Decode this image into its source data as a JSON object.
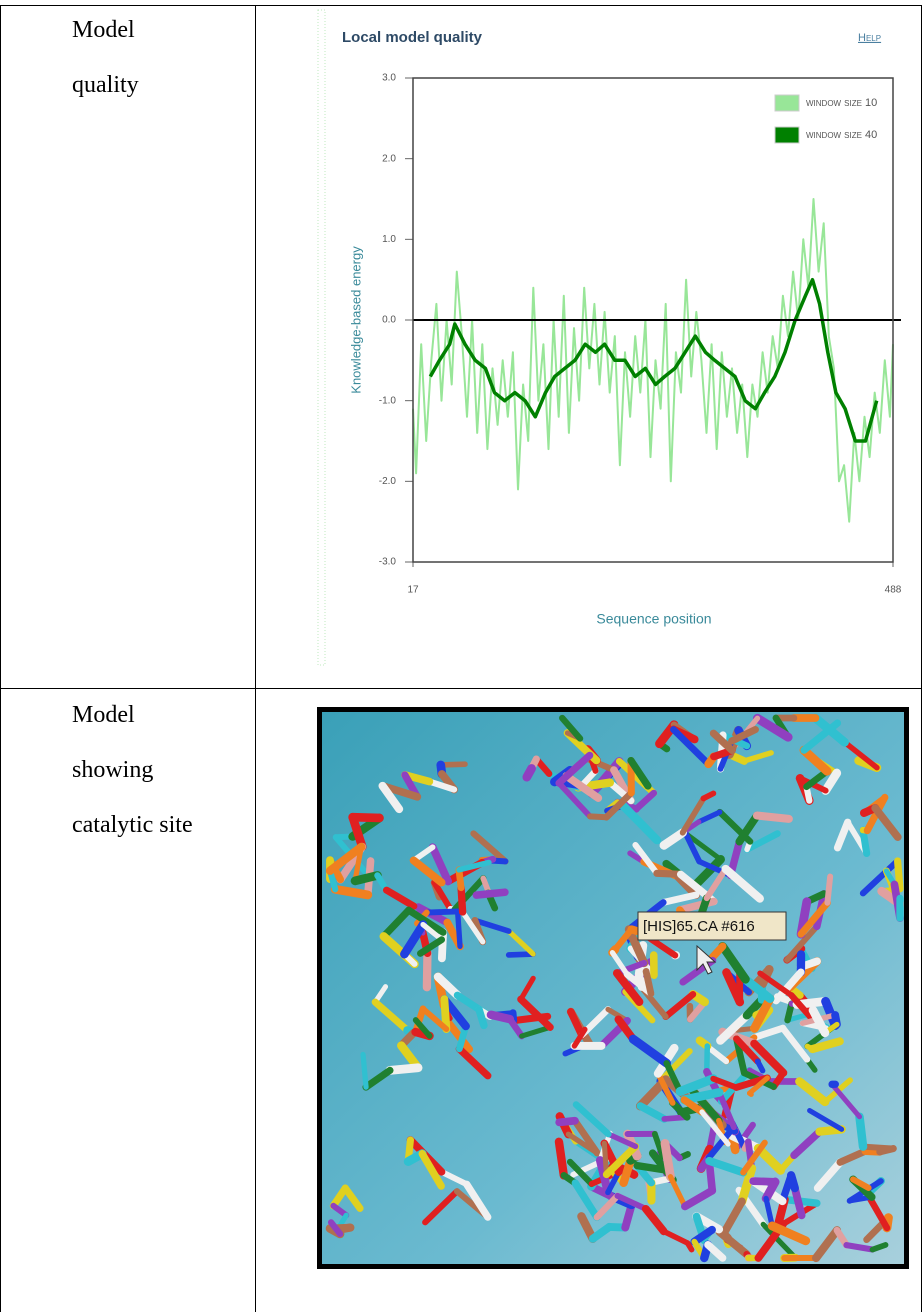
{
  "table": {
    "rows": [
      {
        "label_lines": [
          "Model",
          "quality"
        ]
      },
      {
        "label_lines": [
          "Model",
          "showing",
          "catalytic site"
        ],
        "image": {
          "tooltip": "[HIS]65.CA #616"
        }
      }
    ]
  },
  "chart_data": {
    "type": "line",
    "title": "Local model quality",
    "help": "Help",
    "xlabel": "Sequence position",
    "ylabel": "Knowledge-based energy",
    "xlim": [
      17,
      488
    ],
    "xticks": [
      17,
      488
    ],
    "ylim": [
      -3,
      3
    ],
    "yticks": [
      {
        "value": 3,
        "label": "3.0"
      },
      {
        "value": 2,
        "label": "2.0"
      },
      {
        "value": 1,
        "label": "1.0"
      },
      {
        "value": 0,
        "label": "0.0"
      },
      {
        "value": -1,
        "label": "-1.0"
      },
      {
        "value": -2,
        "label": "-2.0"
      },
      {
        "value": -3,
        "label": "-3.0"
      }
    ],
    "legend": "top-right",
    "series": [
      {
        "name": "window size 10",
        "color": "#98e698",
        "x": [
          17,
          20,
          25,
          30,
          35,
          40,
          45,
          50,
          55,
          60,
          65,
          70,
          75,
          80,
          85,
          90,
          95,
          100,
          105,
          110,
          115,
          120,
          125,
          130,
          135,
          140,
          145,
          150,
          155,
          160,
          165,
          170,
          175,
          180,
          185,
          190,
          195,
          200,
          205,
          210,
          215,
          220,
          225,
          230,
          235,
          240,
          245,
          250,
          255,
          260,
          265,
          270,
          275,
          280,
          285,
          290,
          295,
          300,
          305,
          310,
          315,
          320,
          325,
          330,
          335,
          340,
          345,
          350,
          355,
          360,
          365,
          370,
          375,
          380,
          385,
          390,
          395,
          400,
          405,
          410,
          415,
          420,
          425,
          430,
          435,
          440,
          445,
          450,
          455,
          460,
          465,
          470,
          475,
          480,
          485,
          488
        ],
        "values": [
          -1.1,
          -1.9,
          -0.3,
          -1.5,
          -0.5,
          0.2,
          -1.0,
          0.0,
          -0.8,
          0.6,
          -0.2,
          -1.2,
          0.0,
          -1.4,
          -0.3,
          -1.6,
          -0.6,
          -1.3,
          -0.5,
          -1.2,
          -0.4,
          -2.1,
          -0.8,
          -1.5,
          0.4,
          -1.0,
          -0.3,
          -1.6,
          0.0,
          -1.2,
          0.3,
          -1.4,
          -0.1,
          -1.0,
          0.4,
          -0.6,
          0.2,
          -0.8,
          0.1,
          -0.9,
          -0.2,
          -1.8,
          -0.4,
          -1.2,
          -0.2,
          -0.9,
          0.0,
          -1.7,
          -0.5,
          -1.1,
          0.2,
          -2.0,
          -0.4,
          -0.9,
          0.5,
          -0.7,
          0.1,
          -0.5,
          -1.4,
          -0.3,
          -1.6,
          -0.4,
          -1.2,
          -0.6,
          -1.4,
          -0.8,
          -1.7,
          -0.8,
          -1.2,
          -0.4,
          -0.9,
          -0.2,
          -0.6,
          0.3,
          -0.2,
          0.6,
          0.0,
          1.0,
          0.4,
          1.5,
          0.6,
          1.2,
          -0.2,
          -0.6,
          -2.0,
          -1.8,
          -2.5,
          -1.4,
          -2.0,
          -1.2,
          -1.7,
          -0.9,
          -1.4,
          -0.5,
          -1.2,
          -0.3
        ]
      },
      {
        "name": "window size 40",
        "color": "#008000",
        "x": [
          34,
          43,
          53,
          58,
          68,
          78,
          88,
          97,
          107,
          117,
          127,
          137,
          147,
          156,
          166,
          176,
          186,
          196,
          205,
          215,
          225,
          235,
          245,
          255,
          264,
          274,
          284,
          294,
          304,
          313,
          323,
          333,
          343,
          353,
          362,
          372,
          382,
          392,
          402,
          409,
          416,
          424,
          432,
          441,
          451,
          461,
          472
        ],
        "values": [
          -0.7,
          -0.5,
          -0.3,
          -0.05,
          -0.3,
          -0.5,
          -0.6,
          -0.9,
          -1.0,
          -0.9,
          -1.0,
          -1.2,
          -0.9,
          -0.7,
          -0.6,
          -0.5,
          -0.3,
          -0.4,
          -0.3,
          -0.5,
          -0.5,
          -0.7,
          -0.6,
          -0.8,
          -0.7,
          -0.6,
          -0.4,
          -0.2,
          -0.4,
          -0.5,
          -0.6,
          -0.7,
          -1.0,
          -1.1,
          -0.9,
          -0.7,
          -0.4,
          0.0,
          0.3,
          0.5,
          0.2,
          -0.4,
          -0.9,
          -1.1,
          -1.5,
          -1.5,
          -1.0
        ]
      }
    ]
  }
}
